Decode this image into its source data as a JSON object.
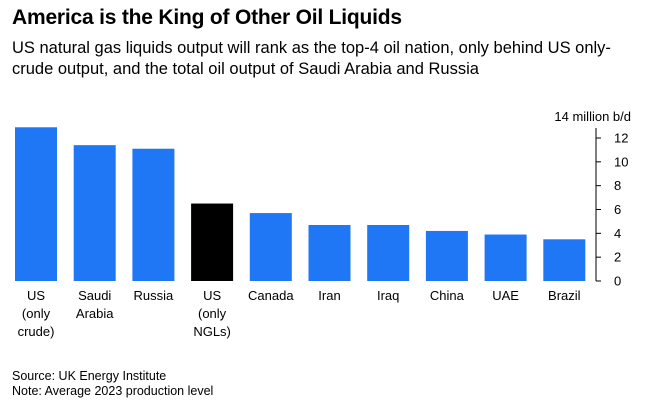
{
  "title": "America is the King of Other Oil Liquids",
  "subtitle": "US natural gas liquids output will rank as the top-4 oil nation, only behind US only-crude output, and the total oil output of Saudi Arabia and Russia",
  "source": "Source: UK Energy Institute",
  "note": "Note: Average 2023 production level",
  "chart_data": {
    "type": "bar",
    "title": "America is the King of Other Oil Liquids",
    "ylabel": "14 million b/d",
    "xlabel": "",
    "ylim": [
      0,
      14
    ],
    "yticks": [
      "0",
      "2",
      "4",
      "6",
      "8",
      "10",
      "12"
    ],
    "categories": [
      [
        "US",
        "(only",
        "crude)"
      ],
      [
        "Saudi",
        "Arabia"
      ],
      [
        "Russia"
      ],
      [
        "US",
        "(only",
        "NGLs)"
      ],
      [
        "Canada"
      ],
      [
        "Iran"
      ],
      [
        "Iraq"
      ],
      [
        "China"
      ],
      [
        "UAE"
      ],
      [
        "Brazil"
      ]
    ],
    "values": [
      12.9,
      11.4,
      11.1,
      6.5,
      5.7,
      4.7,
      4.7,
      4.2,
      3.9,
      3.5
    ],
    "highlight_index": 3,
    "colors": {
      "bar": "#1F77F5",
      "highlight": "#000000",
      "axis": "#000000"
    },
    "grid": false
  }
}
